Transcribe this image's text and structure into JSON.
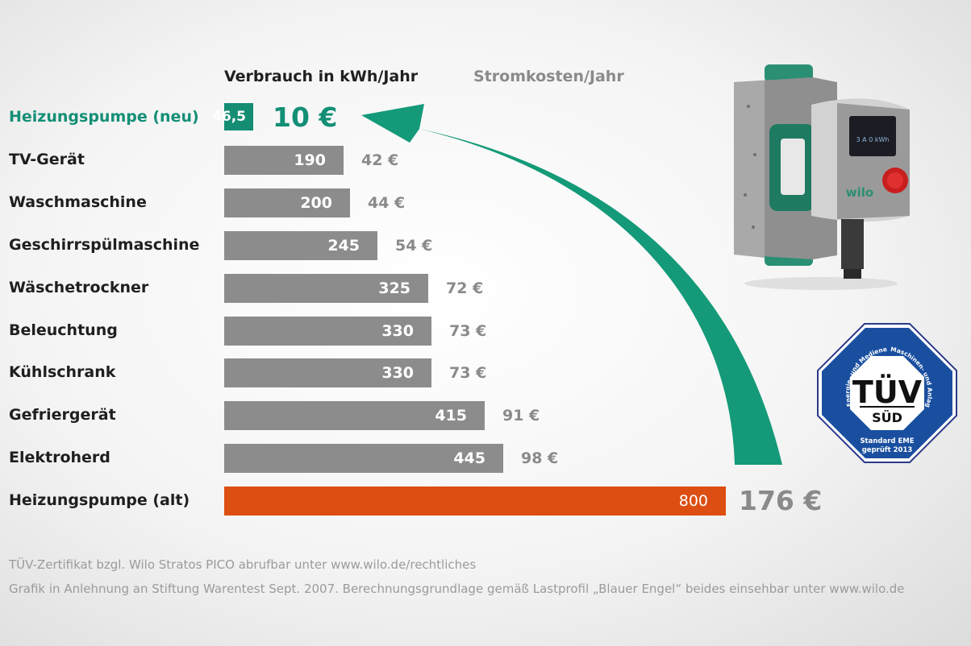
{
  "header": {
    "volume_label": "Verbrauch in kWh/Jahr",
    "cost_label": "Stromkosten/Jahr"
  },
  "chart_data": {
    "type": "bar",
    "orientation": "horizontal",
    "categories": [
      "Heizungspumpe (neu)",
      "TV-Gerät",
      "Waschmaschine",
      "Geschirrspülmaschine",
      "Wäschetrockner",
      "Beleuchtung",
      "Kühlschrank",
      "Gefriergerät",
      "Elektroherd",
      "Heizungspumpe (alt)"
    ],
    "values": [
      46.5,
      190,
      200,
      245,
      325,
      330,
      330,
      415,
      445,
      800
    ],
    "value_labels": [
      "46,5",
      "190",
      "200",
      "245",
      "325",
      "330",
      "330",
      "415",
      "445",
      "800"
    ],
    "costs": [
      "10 €",
      "42 €",
      "44 €",
      "54 €",
      "72 €",
      "73 €",
      "73 €",
      "91 €",
      "98 €",
      "176 €"
    ],
    "title": "",
    "xlabel": "Verbrauch in kWh/Jahr",
    "ylabel": "",
    "xlim": [
      0,
      800
    ],
    "grid": false,
    "colors": {
      "new": "#148d73",
      "default": "#8c8c8c",
      "old": "#dd4e12",
      "arrow": "#149a78"
    }
  },
  "product": {
    "brand": "wilo",
    "display": "3 A 0 kWh"
  },
  "badge": {
    "wordmark": "TÜV",
    "sub": "SÜD",
    "ring_left": "Energie- und Medieneffizienz",
    "ring_right": "Maschinen- und Anlagentechnik",
    "standard": "Standard EME",
    "year": "geprüft 2013"
  },
  "footnotes": [
    "TÜV-Zertifikat bzgl. Wilo Stratos PICO abrufbar unter www.wilo.de/rechtliches",
    "Grafik in Anlehnung an Stiftung Warentest Sept. 2007. Berechnungsgrundlage gemäß Lastprofil „Blauer Engel“ beides einsehbar unter www.wilo.de"
  ]
}
